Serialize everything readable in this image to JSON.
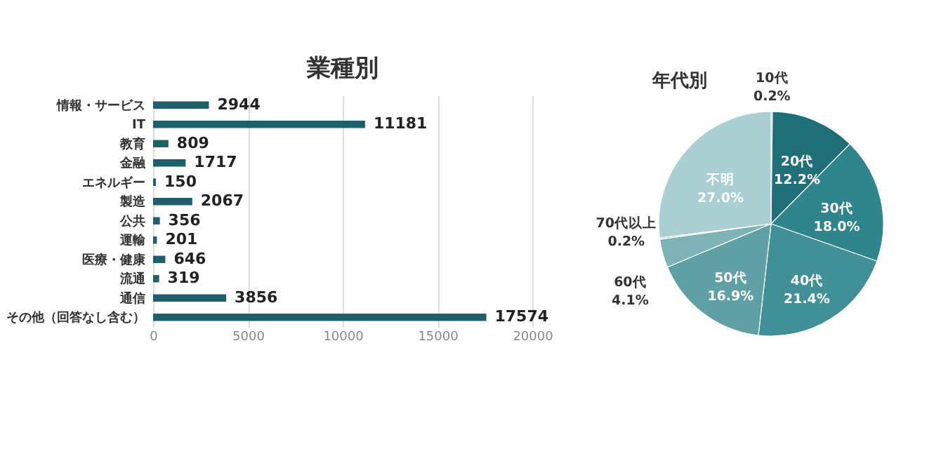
{
  "chart_data": [
    {
      "type": "bar",
      "orientation": "horizontal",
      "title": "業種別",
      "categories": [
        "情報・サービス",
        "IT",
        "教育",
        "金融",
        "エネルギー",
        "製造",
        "公共",
        "運輸",
        "医療・健康",
        "流通",
        "通信",
        "その他（回答なし含む）"
      ],
      "values": [
        2944,
        11181,
        809,
        1717,
        150,
        2067,
        356,
        201,
        646,
        319,
        3856,
        17574
      ],
      "color": "#1d5f6b",
      "xlim": [
        0,
        20000
      ],
      "xticks": [
        0,
        5000,
        10000,
        15000,
        20000
      ],
      "grid": "x",
      "data_labels": true
    },
    {
      "type": "pie",
      "title": "年代別",
      "categories": [
        "10代",
        "20代",
        "30代",
        "40代",
        "50代",
        "60代",
        "70代以上",
        "不明"
      ],
      "values": [
        0.2,
        12.2,
        18.0,
        21.4,
        16.9,
        4.1,
        0.2,
        27.0
      ],
      "value_labels": [
        "0.2%",
        "12.2%",
        "18.0%",
        "21.4%",
        "16.9%",
        "4.1%",
        "0.2%",
        "27.0%"
      ],
      "colors": [
        "#1a6670",
        "#1f6f78",
        "#2e858c",
        "#3f9197",
        "#5fa0a5",
        "#7db3b7",
        "#8fbfc2",
        "#a9cfd3"
      ]
    }
  ]
}
